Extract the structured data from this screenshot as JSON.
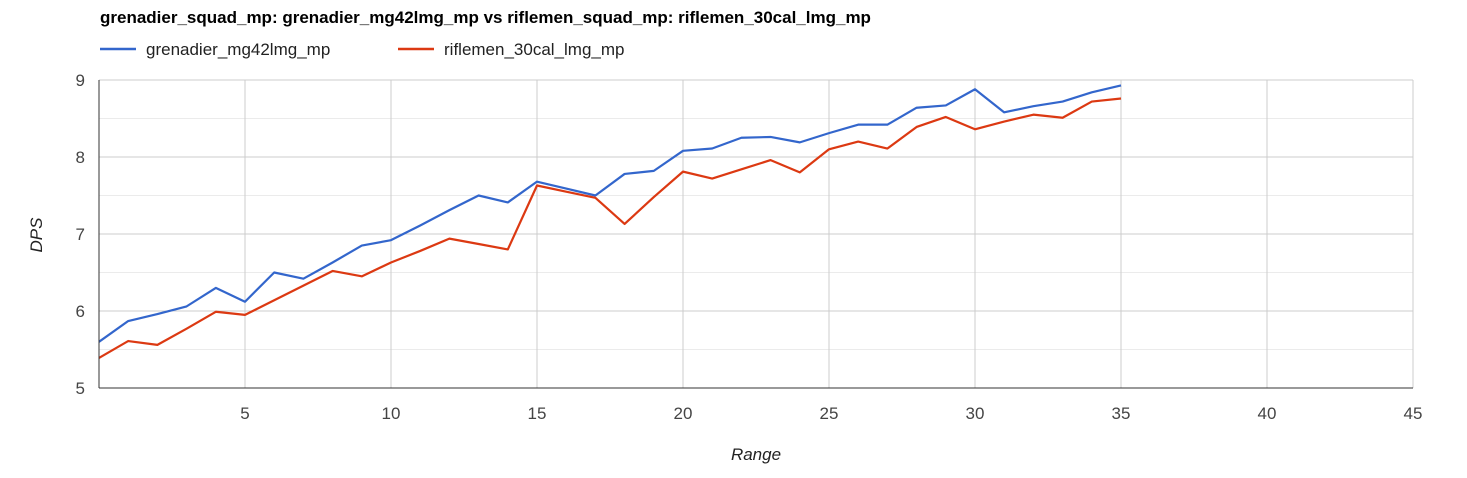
{
  "chart_data": {
    "type": "line",
    "title": "grenadier_squad_mp: grenadier_mg42lmg_mp vs riflemen_squad_mp: riflemen_30cal_lmg_mp",
    "xlabel": "Range",
    "ylabel": "DPS",
    "xlim": [
      0,
      45
    ],
    "ylim": [
      5,
      9
    ],
    "xticks": [
      5,
      10,
      15,
      20,
      25,
      30,
      35,
      40,
      45
    ],
    "yticks": [
      5,
      6,
      7,
      8,
      9
    ],
    "grid": true,
    "legend_position": "top-left",
    "x": [
      0,
      1,
      2,
      3,
      4,
      5,
      6,
      7,
      8,
      9,
      10,
      11,
      12,
      13,
      14,
      15,
      16,
      17,
      18,
      19,
      20,
      21,
      22,
      23,
      24,
      25,
      26,
      27,
      28,
      29,
      30,
      31,
      32,
      33,
      34,
      35
    ],
    "series": [
      {
        "name": "grenadier_mg42lmg_mp",
        "color": "#3366cc",
        "values": [
          5.6,
          5.87,
          5.96,
          6.06,
          6.3,
          6.12,
          6.5,
          6.42,
          6.63,
          6.85,
          6.92,
          7.11,
          7.31,
          7.5,
          7.41,
          7.68,
          7.59,
          7.5,
          7.78,
          7.82,
          8.08,
          8.11,
          8.25,
          8.26,
          8.19,
          8.31,
          8.42,
          8.42,
          8.64,
          8.67,
          8.88,
          8.58,
          8.66,
          8.72,
          8.84,
          8.93
        ]
      },
      {
        "name": "riflemen_30cal_lmg_mp",
        "color": "#dc3912",
        "values": [
          5.39,
          5.61,
          5.56,
          5.77,
          5.99,
          5.95,
          6.14,
          6.33,
          6.52,
          6.45,
          6.63,
          6.78,
          6.94,
          6.87,
          6.8,
          7.63,
          7.55,
          7.47,
          7.13,
          7.48,
          7.81,
          7.72,
          7.84,
          7.96,
          7.8,
          8.1,
          8.2,
          8.11,
          8.39,
          8.52,
          8.36,
          8.46,
          8.55,
          8.51,
          8.72,
          8.76
        ]
      }
    ]
  }
}
